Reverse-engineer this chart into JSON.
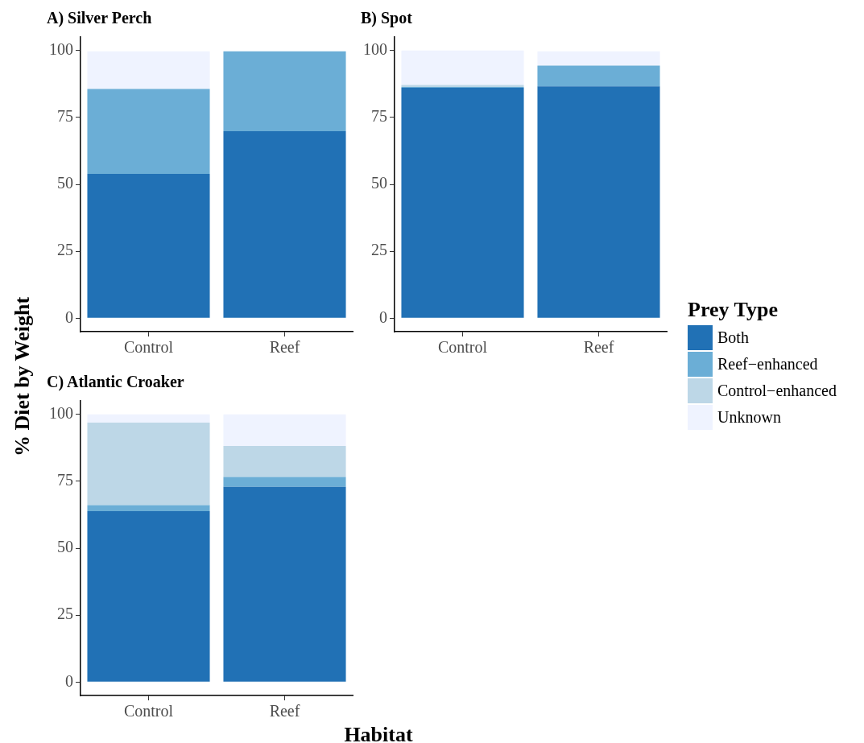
{
  "chart_data": [
    {
      "type": "bar",
      "title": "A) Silver Perch",
      "ylabel": "% Diet by Weight",
      "stacked": true,
      "legend": "right",
      "legend_title": "Prey Type",
      "categories": [
        "Control",
        "Reef"
      ],
      "ylim": [
        -5,
        105
      ],
      "yticks": [
        0,
        25,
        50,
        75,
        100
      ],
      "series": [
        {
          "name": "Both",
          "color": "#2171b5",
          "values": [
            53.9,
            69.8
          ]
        },
        {
          "name": "Reef−enhanced",
          "color": "#6baed6",
          "values": [
            31.7,
            29.9
          ]
        },
        {
          "name": "Control−enhanced",
          "color": "#bdd7e7",
          "values": [
            null,
            null
          ]
        },
        {
          "name": "Unknown",
          "color": "#eff3ff",
          "values": [
            14.1,
            0
          ]
        }
      ]
    },
    {
      "type": "bar",
      "title": "B) Spot",
      "stacked": true,
      "categories": [
        "Control",
        "Reef"
      ],
      "ylim": [
        -5,
        105
      ],
      "yticks": [
        0,
        25,
        50,
        75,
        100
      ],
      "series": [
        {
          "color": "#2171b5",
          "values": [
            86.1,
            86.6
          ]
        },
        {
          "color": "#6baed6",
          "values": [
            0.3,
            7.7
          ]
        },
        {
          "color": "#bdd7e7",
          "values": [
            0.7,
            null
          ]
        },
        {
          "color": "#eff3ff",
          "values": [
            12.9,
            5.4
          ]
        }
      ]
    },
    {
      "type": "bar",
      "title": "C) Atlantic Croaker",
      "xlabel": "Habitat",
      "stacked": true,
      "categories": [
        "Control",
        "Reef"
      ],
      "ylim": [
        -5,
        105
      ],
      "yticks": [
        0,
        25,
        50,
        75,
        100
      ],
      "series": [
        {
          "color": "#2171b5",
          "values": [
            63.8,
            72.9
          ]
        },
        {
          "color": "#6baed6",
          "values": [
            2.3,
            3.7
          ]
        },
        {
          "color": "#bdd7e7",
          "values": [
            30.8,
            11.6
          ]
        },
        {
          "color": "#eff3ff",
          "values": [
            3.1,
            11.8
          ]
        }
      ]
    }
  ]
}
